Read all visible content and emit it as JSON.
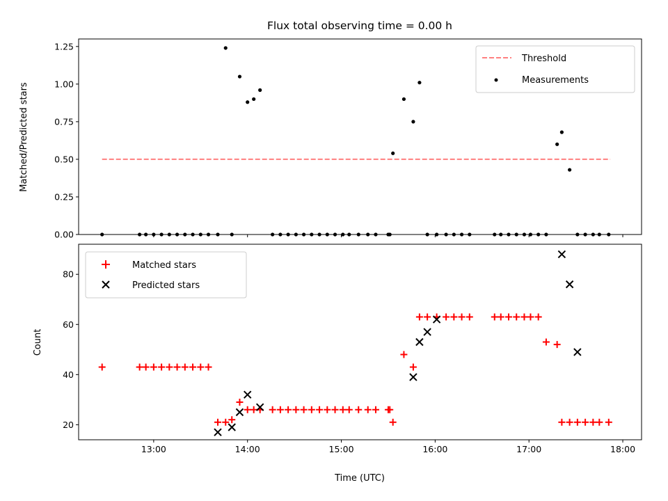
{
  "chart_data": [
    {
      "type": "scatter",
      "title": "Flux total observing time = 0.00 h",
      "xlabel": "",
      "ylabel": "Matched/Predicted stars",
      "xlim": [
        "12:12",
        "18:12"
      ],
      "ylim": [
        0,
        1.3
      ],
      "xticks": [
        "13:00",
        "14:00",
        "15:00",
        "16:00",
        "17:00",
        "18:00"
      ],
      "xtick_labels_visible": false,
      "yticks": [
        "0.00",
        "0.25",
        "0.50",
        "0.75",
        "1.00",
        "1.25"
      ],
      "legend": {
        "position": "top-right",
        "entries": [
          {
            "label": "Threshold",
            "marker": "dashed-line",
            "color": "#ff7f7f"
          },
          {
            "label": "Measurements",
            "marker": "dot",
            "color": "#000000"
          }
        ]
      },
      "series": [
        {
          "name": "Threshold",
          "style": "dashed-line",
          "color": "#ff7f7f",
          "x": [
            "12:27",
            "17:52"
          ],
          "y": [
            0.5,
            0.5
          ]
        },
        {
          "name": "Measurements",
          "style": "dot",
          "color": "#000000",
          "x": [
            "12:27",
            "12:51",
            "12:55",
            "13:00",
            "13:05",
            "13:10",
            "13:15",
            "13:20",
            "13:25",
            "13:30",
            "13:35",
            "13:41",
            "13:46",
            "13:50",
            "13:55",
            "14:00",
            "14:04",
            "14:08",
            "14:16",
            "14:21",
            "14:26",
            "14:31",
            "14:36",
            "14:41",
            "14:46",
            "14:51",
            "14:56",
            "15:01",
            "15:05",
            "15:11",
            "15:17",
            "15:22",
            "15:30",
            "15:31",
            "15:33",
            "15:40",
            "15:46",
            "15:50",
            "15:55",
            "16:01",
            "16:07",
            "16:12",
            "16:17",
            "16:22",
            "16:38",
            "16:42",
            "16:47",
            "16:52",
            "16:57",
            "17:01",
            "17:06",
            "17:11",
            "17:18",
            "17:21",
            "17:26",
            "17:31",
            "17:36",
            "17:41",
            "17:45",
            "17:51"
          ],
          "y": [
            0,
            0,
            0,
            0,
            0,
            0,
            0,
            0,
            0,
            0,
            0,
            0,
            1.24,
            0,
            1.05,
            0.88,
            0.9,
            0.96,
            0,
            0,
            0,
            0,
            0,
            0,
            0,
            0,
            0,
            0,
            0,
            0,
            0,
            0,
            0,
            0,
            0.54,
            0.9,
            0.75,
            1.01,
            0,
            0,
            0,
            0,
            0,
            0,
            0,
            0,
            0,
            0,
            0,
            0,
            0,
            0,
            0.6,
            0.68,
            0.43,
            0,
            0,
            0,
            0,
            0
          ]
        }
      ]
    },
    {
      "type": "scatter",
      "title": "",
      "xlabel": "Time (UTC)",
      "ylabel": "Count",
      "xlim": [
        "12:12",
        "18:12"
      ],
      "ylim": [
        14,
        92
      ],
      "xticks": [
        "13:00",
        "14:00",
        "15:00",
        "16:00",
        "17:00",
        "18:00"
      ],
      "yticks": [
        "20",
        "40",
        "60",
        "80"
      ],
      "legend": {
        "position": "top-left",
        "entries": [
          {
            "label": "Matched stars",
            "marker": "plus",
            "color": "#ff0000"
          },
          {
            "label": "Predicted stars",
            "marker": "x",
            "color": "#000000"
          }
        ]
      },
      "series": [
        {
          "name": "Matched stars",
          "style": "plus",
          "color": "#ff0000",
          "x": [
            "12:27",
            "12:51",
            "12:55",
            "13:00",
            "13:05",
            "13:10",
            "13:15",
            "13:20",
            "13:25",
            "13:30",
            "13:35",
            "13:41",
            "13:46",
            "13:50",
            "13:55",
            "14:00",
            "14:04",
            "14:08",
            "14:16",
            "14:21",
            "14:26",
            "14:31",
            "14:36",
            "14:41",
            "14:46",
            "14:51",
            "14:56",
            "15:01",
            "15:05",
            "15:11",
            "15:17",
            "15:22",
            "15:30",
            "15:31",
            "15:33",
            "15:40",
            "15:46",
            "15:50",
            "15:55",
            "16:01",
            "16:07",
            "16:12",
            "16:17",
            "16:22",
            "16:38",
            "16:42",
            "16:47",
            "16:52",
            "16:57",
            "17:01",
            "17:06",
            "17:11",
            "17:18",
            "17:21",
            "17:26",
            "17:31",
            "17:36",
            "17:41",
            "17:45",
            "17:51"
          ],
          "y": [
            43,
            43,
            43,
            43,
            43,
            43,
            43,
            43,
            43,
            43,
            43,
            21,
            21,
            22,
            29,
            26,
            26,
            26,
            26,
            26,
            26,
            26,
            26,
            26,
            26,
            26,
            26,
            26,
            26,
            26,
            26,
            26,
            26,
            26,
            21,
            48,
            43,
            63,
            63,
            63,
            63,
            63,
            63,
            63,
            63,
            63,
            63,
            63,
            63,
            63,
            63,
            53,
            52,
            21,
            21,
            21,
            21,
            21,
            21,
            21
          ]
        },
        {
          "name": "Predicted stars",
          "style": "x",
          "color": "#000000",
          "x": [
            "13:41",
            "13:50",
            "13:55",
            "14:00",
            "14:08",
            "15:46",
            "15:50",
            "15:55",
            "16:01",
            "17:21",
            "17:26",
            "17:31"
          ],
          "y": [
            17,
            19,
            25,
            32,
            27,
            39,
            53,
            57,
            62,
            88,
            76,
            49
          ]
        }
      ]
    }
  ]
}
